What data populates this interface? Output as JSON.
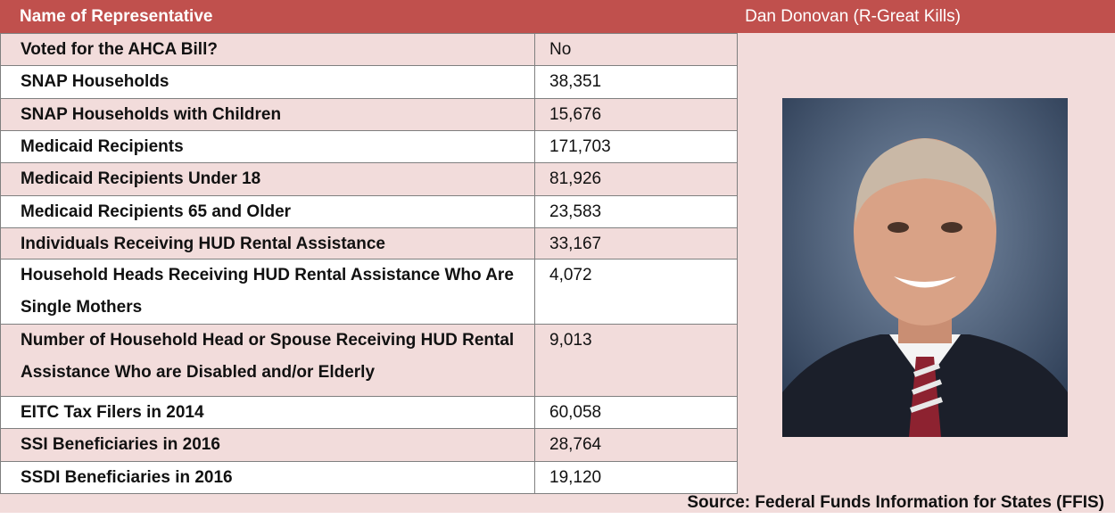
{
  "header": {
    "label": "Name of Representative",
    "name": "Dan Donovan (R-Great Kills)"
  },
  "table": {
    "rows": [
      [
        "Voted for the AHCA Bill?",
        "No"
      ],
      [
        "SNAP Households",
        "38,351"
      ],
      [
        "SNAP Households with Children",
        "15,676"
      ],
      [
        "Medicaid Recipients",
        "171,703"
      ],
      [
        "Medicaid Recipients Under 18",
        "81,926"
      ],
      [
        "Medicaid Recipients 65 and Older",
        "23,583"
      ],
      [
        "Individuals Receiving HUD Rental Assistance",
        "33,167"
      ],
      [
        "Household Heads Receiving HUD Rental Assistance Who Are Single Mothers",
        "4,072"
      ],
      [
        "Number of Household Head or Spouse Receiving HUD Rental Assistance Who are Disabled and/or Elderly",
        "9,013"
      ],
      [
        "EITC Tax Filers in 2014",
        "60,058"
      ],
      [
        "SSI Beneficiaries in 2016",
        "28,764"
      ],
      [
        "SSDI Beneficiaries in 2016",
        "19,120"
      ]
    ]
  },
  "source": "Source: Federal Funds Information for States (FFIS)"
}
